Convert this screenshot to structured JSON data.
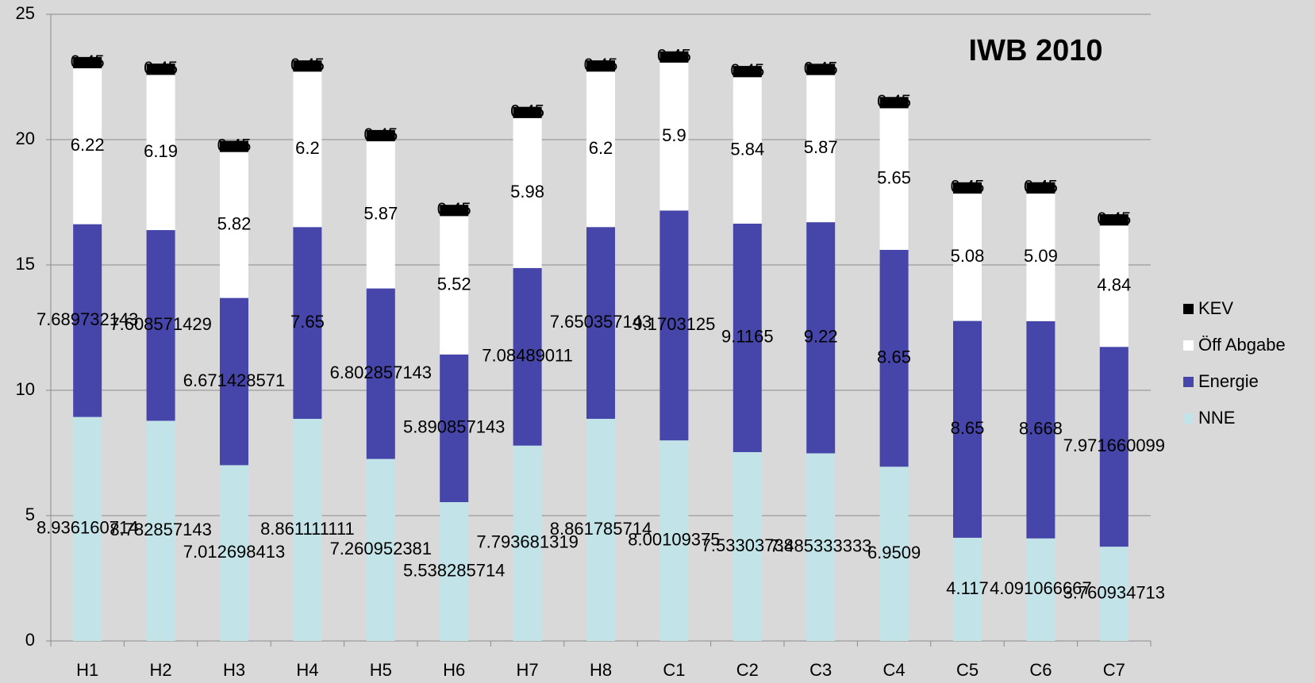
{
  "chart_data": {
    "type": "stacked_bar",
    "title": "IWB 2010",
    "categories": [
      "H1",
      "H2",
      "H3",
      "H4",
      "H5",
      "H6",
      "H7",
      "H8",
      "C1",
      "C2",
      "C3",
      "C4",
      "C5",
      "C6",
      "C7"
    ],
    "series": [
      {
        "name": "NNE",
        "color": "#c2e4e8",
        "values": [
          8.936160714,
          8.782857143,
          7.012698413,
          8.861111111,
          7.260952381,
          5.538285714,
          7.793681319,
          8.861785714,
          8.00109375,
          7.53303738,
          7.485333333,
          6.9509,
          4.117,
          4.091066667,
          3.760934713
        ]
      },
      {
        "name": "Energie",
        "color": "#4646aa",
        "values": [
          7.689732143,
          7.608571429,
          6.671428571,
          7.65,
          6.802857143,
          5.890857143,
          7.08489011,
          7.650357143,
          9.1703125,
          9.1165,
          9.22,
          8.65,
          8.65,
          8.668,
          7.971660099
        ]
      },
      {
        "name": "Öff Abgabe",
        "color": "#ffffff",
        "values": [
          6.22,
          6.19,
          5.82,
          6.2,
          5.87,
          5.52,
          5.98,
          6.2,
          5.9,
          5.84,
          5.87,
          5.65,
          5.08,
          5.09,
          4.84
        ]
      },
      {
        "name": "KEV",
        "color": "#000000",
        "values": [
          0.45,
          0.45,
          0.45,
          0.45,
          0.45,
          0.45,
          0.45,
          0.45,
          0.45,
          0.45,
          0.45,
          0.45,
          0.45,
          0.45,
          0.45
        ]
      }
    ],
    "ylim": [
      0,
      25
    ],
    "yticks": [
      0,
      5,
      10,
      15,
      20,
      25
    ],
    "grid": true,
    "legend": "right"
  }
}
